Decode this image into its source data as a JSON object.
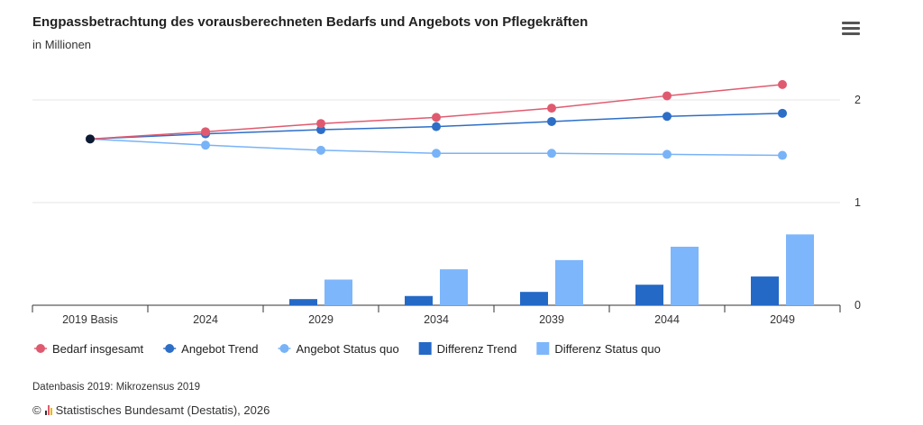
{
  "header": {
    "title": "Engpassbetrachtung des vorausberechneten Bedarfs und Angebots von Pflegekräften",
    "subtitle": "in Millionen",
    "menu_icon": "hamburger-menu-icon"
  },
  "chart_data": {
    "type": "bar",
    "title": "Engpassbetrachtung des vorausberechneten Bedarfs und Angebots von Pflegekräften",
    "subtitle": "in Millionen",
    "categories": [
      "2019 Basis",
      "2024",
      "2029",
      "2034",
      "2039",
      "2044",
      "2049"
    ],
    "y_ticks": [
      "0",
      "1",
      "2"
    ],
    "ylim": [
      0,
      2.4
    ],
    "y_axis_position": "right",
    "grid": true,
    "legend_position": "bottom-left",
    "series": [
      {
        "name": "Bedarf insgesamt",
        "type": "line",
        "color": "#e05a6f",
        "values": [
          1.62,
          1.69,
          1.77,
          1.83,
          1.92,
          2.04,
          2.15
        ]
      },
      {
        "name": "Angebot Trend",
        "type": "line",
        "color": "#2d6ec7",
        "values": [
          1.62,
          1.67,
          1.71,
          1.74,
          1.79,
          1.84,
          1.87
        ]
      },
      {
        "name": "Angebot Status quo",
        "type": "line",
        "color": "#78b3f7",
        "values": [
          1.62,
          1.56,
          1.51,
          1.48,
          1.48,
          1.47,
          1.46
        ]
      },
      {
        "name": "Differenz Trend",
        "type": "bar",
        "color": "#2569c6",
        "values": [
          0,
          0,
          0.06,
          0.09,
          0.13,
          0.2,
          0.28
        ]
      },
      {
        "name": "Differenz Status quo",
        "type": "bar",
        "color": "#7db6fa",
        "values": [
          0,
          0,
          0.25,
          0.35,
          0.44,
          0.57,
          0.69
        ]
      }
    ],
    "base_point_color": "#0c1a33"
  },
  "footer": {
    "source": "Datenbasis 2019: Mikrozensus 2019",
    "copyright_symbol": "©",
    "copyright": "Statistisches Bundesamt (Destatis), 2026"
  }
}
